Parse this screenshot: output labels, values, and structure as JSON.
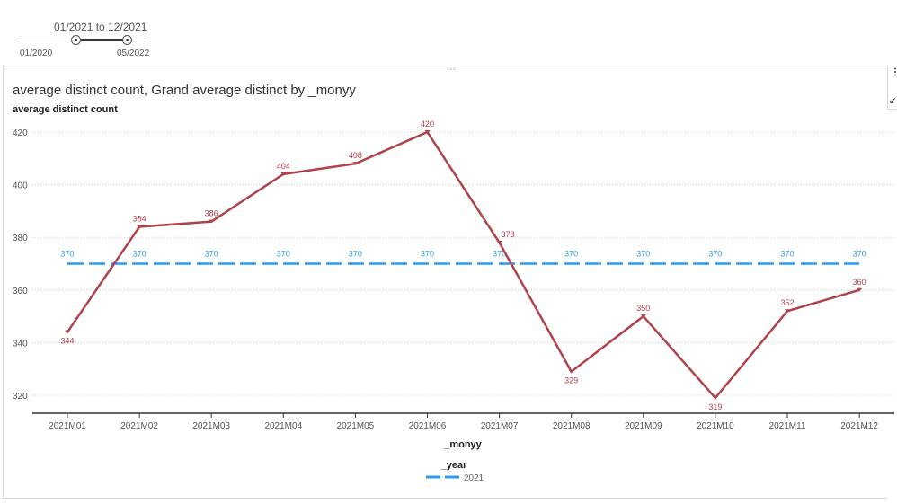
{
  "slider": {
    "range_label": "01/2021 to 12/2021",
    "min_label": "01/2020",
    "max_label": "05/2022"
  },
  "chart_data": {
    "type": "line",
    "title": "average distinct count, Grand average distinct by _monyy",
    "ylabel": "average distinct count",
    "xlabel": "_monyy",
    "categories": [
      "2021M01",
      "2021M02",
      "2021M03",
      "2021M04",
      "2021M05",
      "2021M06",
      "2021M07",
      "2021M08",
      "2021M09",
      "2021M10",
      "2021M11",
      "2021M12"
    ],
    "series": [
      {
        "name": "average distinct count",
        "color": "#b0424a",
        "values": [
          344,
          384,
          386,
          404,
          408,
          420,
          378,
          329,
          350,
          319,
          352,
          360
        ]
      },
      {
        "name": "Grand average distinct",
        "color": "#2d9cf0",
        "style": "dashed",
        "values": [
          370,
          370,
          370,
          370,
          370,
          370,
          370,
          370,
          370,
          370,
          370,
          370
        ]
      }
    ],
    "yticks": [
      320,
      340,
      360,
      380,
      400,
      420
    ],
    "ylim": [
      316,
      424
    ],
    "grid": true,
    "legend": {
      "title": "_year",
      "entries": [
        "2021"
      ],
      "placement": "bottom"
    }
  }
}
